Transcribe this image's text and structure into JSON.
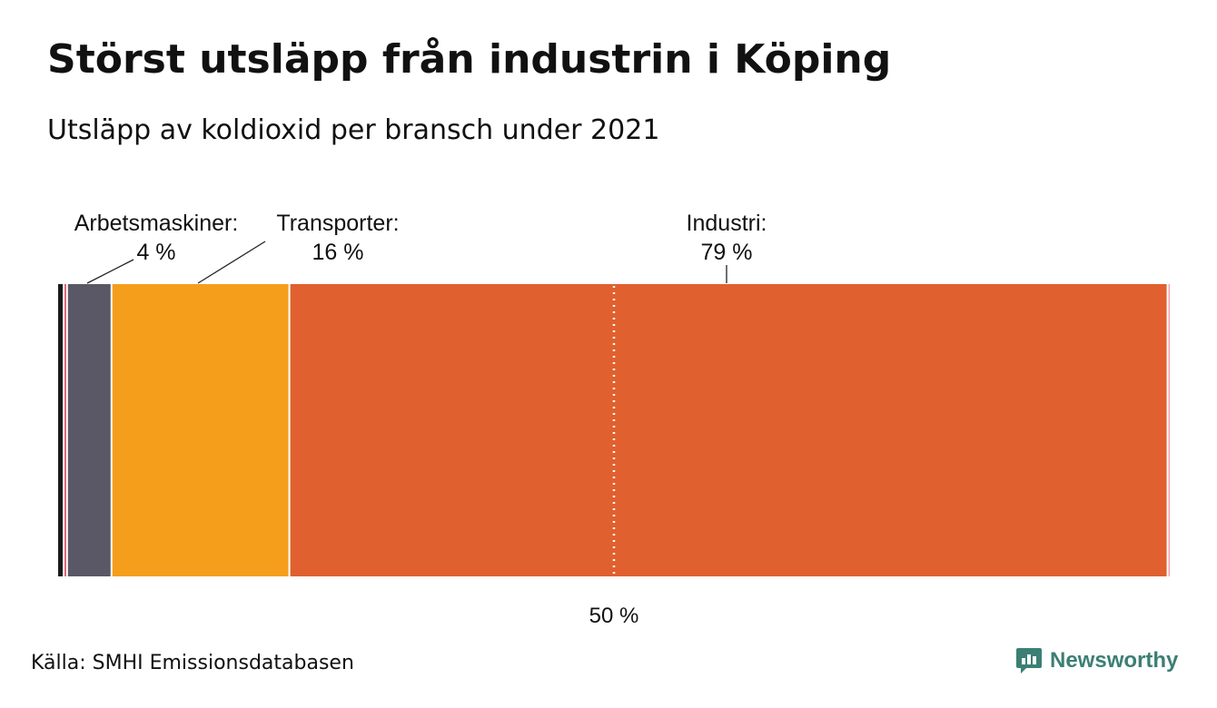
{
  "title": "Störst utsläpp från industrin i Köping",
  "subtitle": "Utsläpp av koldioxid per bransch under 2021",
  "source": "Källa: SMHI Emissionsdatabasen",
  "brand": {
    "name": "Newsworthy",
    "icon": "newsworthy-logo-icon",
    "color": "#3c7f74"
  },
  "chart_data": {
    "type": "bar",
    "orientation": "horizontal-stacked",
    "unit": "%",
    "segments": [
      {
        "name": "",
        "value": 0.5,
        "label": "",
        "color": "#1a1a1a"
      },
      {
        "name": "",
        "value": 0.3,
        "label": "",
        "color": "#d9485f"
      },
      {
        "name": "Arbetsmaskiner:",
        "value": 4,
        "label": "4 %",
        "color": "#5a5866"
      },
      {
        "name": "Transporter:",
        "value": 16,
        "label": "16 %",
        "color": "#f59e1b"
      },
      {
        "name": "Industri:",
        "value": 79,
        "label": "79 %",
        "color": "#e0602f"
      },
      {
        "name": "",
        "value": 0.2,
        "label": "",
        "color": "#f0a0b0"
      }
    ],
    "reference_line": {
      "value": 50,
      "label": "50 %",
      "style": "dotted"
    },
    "xlim": [
      0,
      100
    ]
  }
}
